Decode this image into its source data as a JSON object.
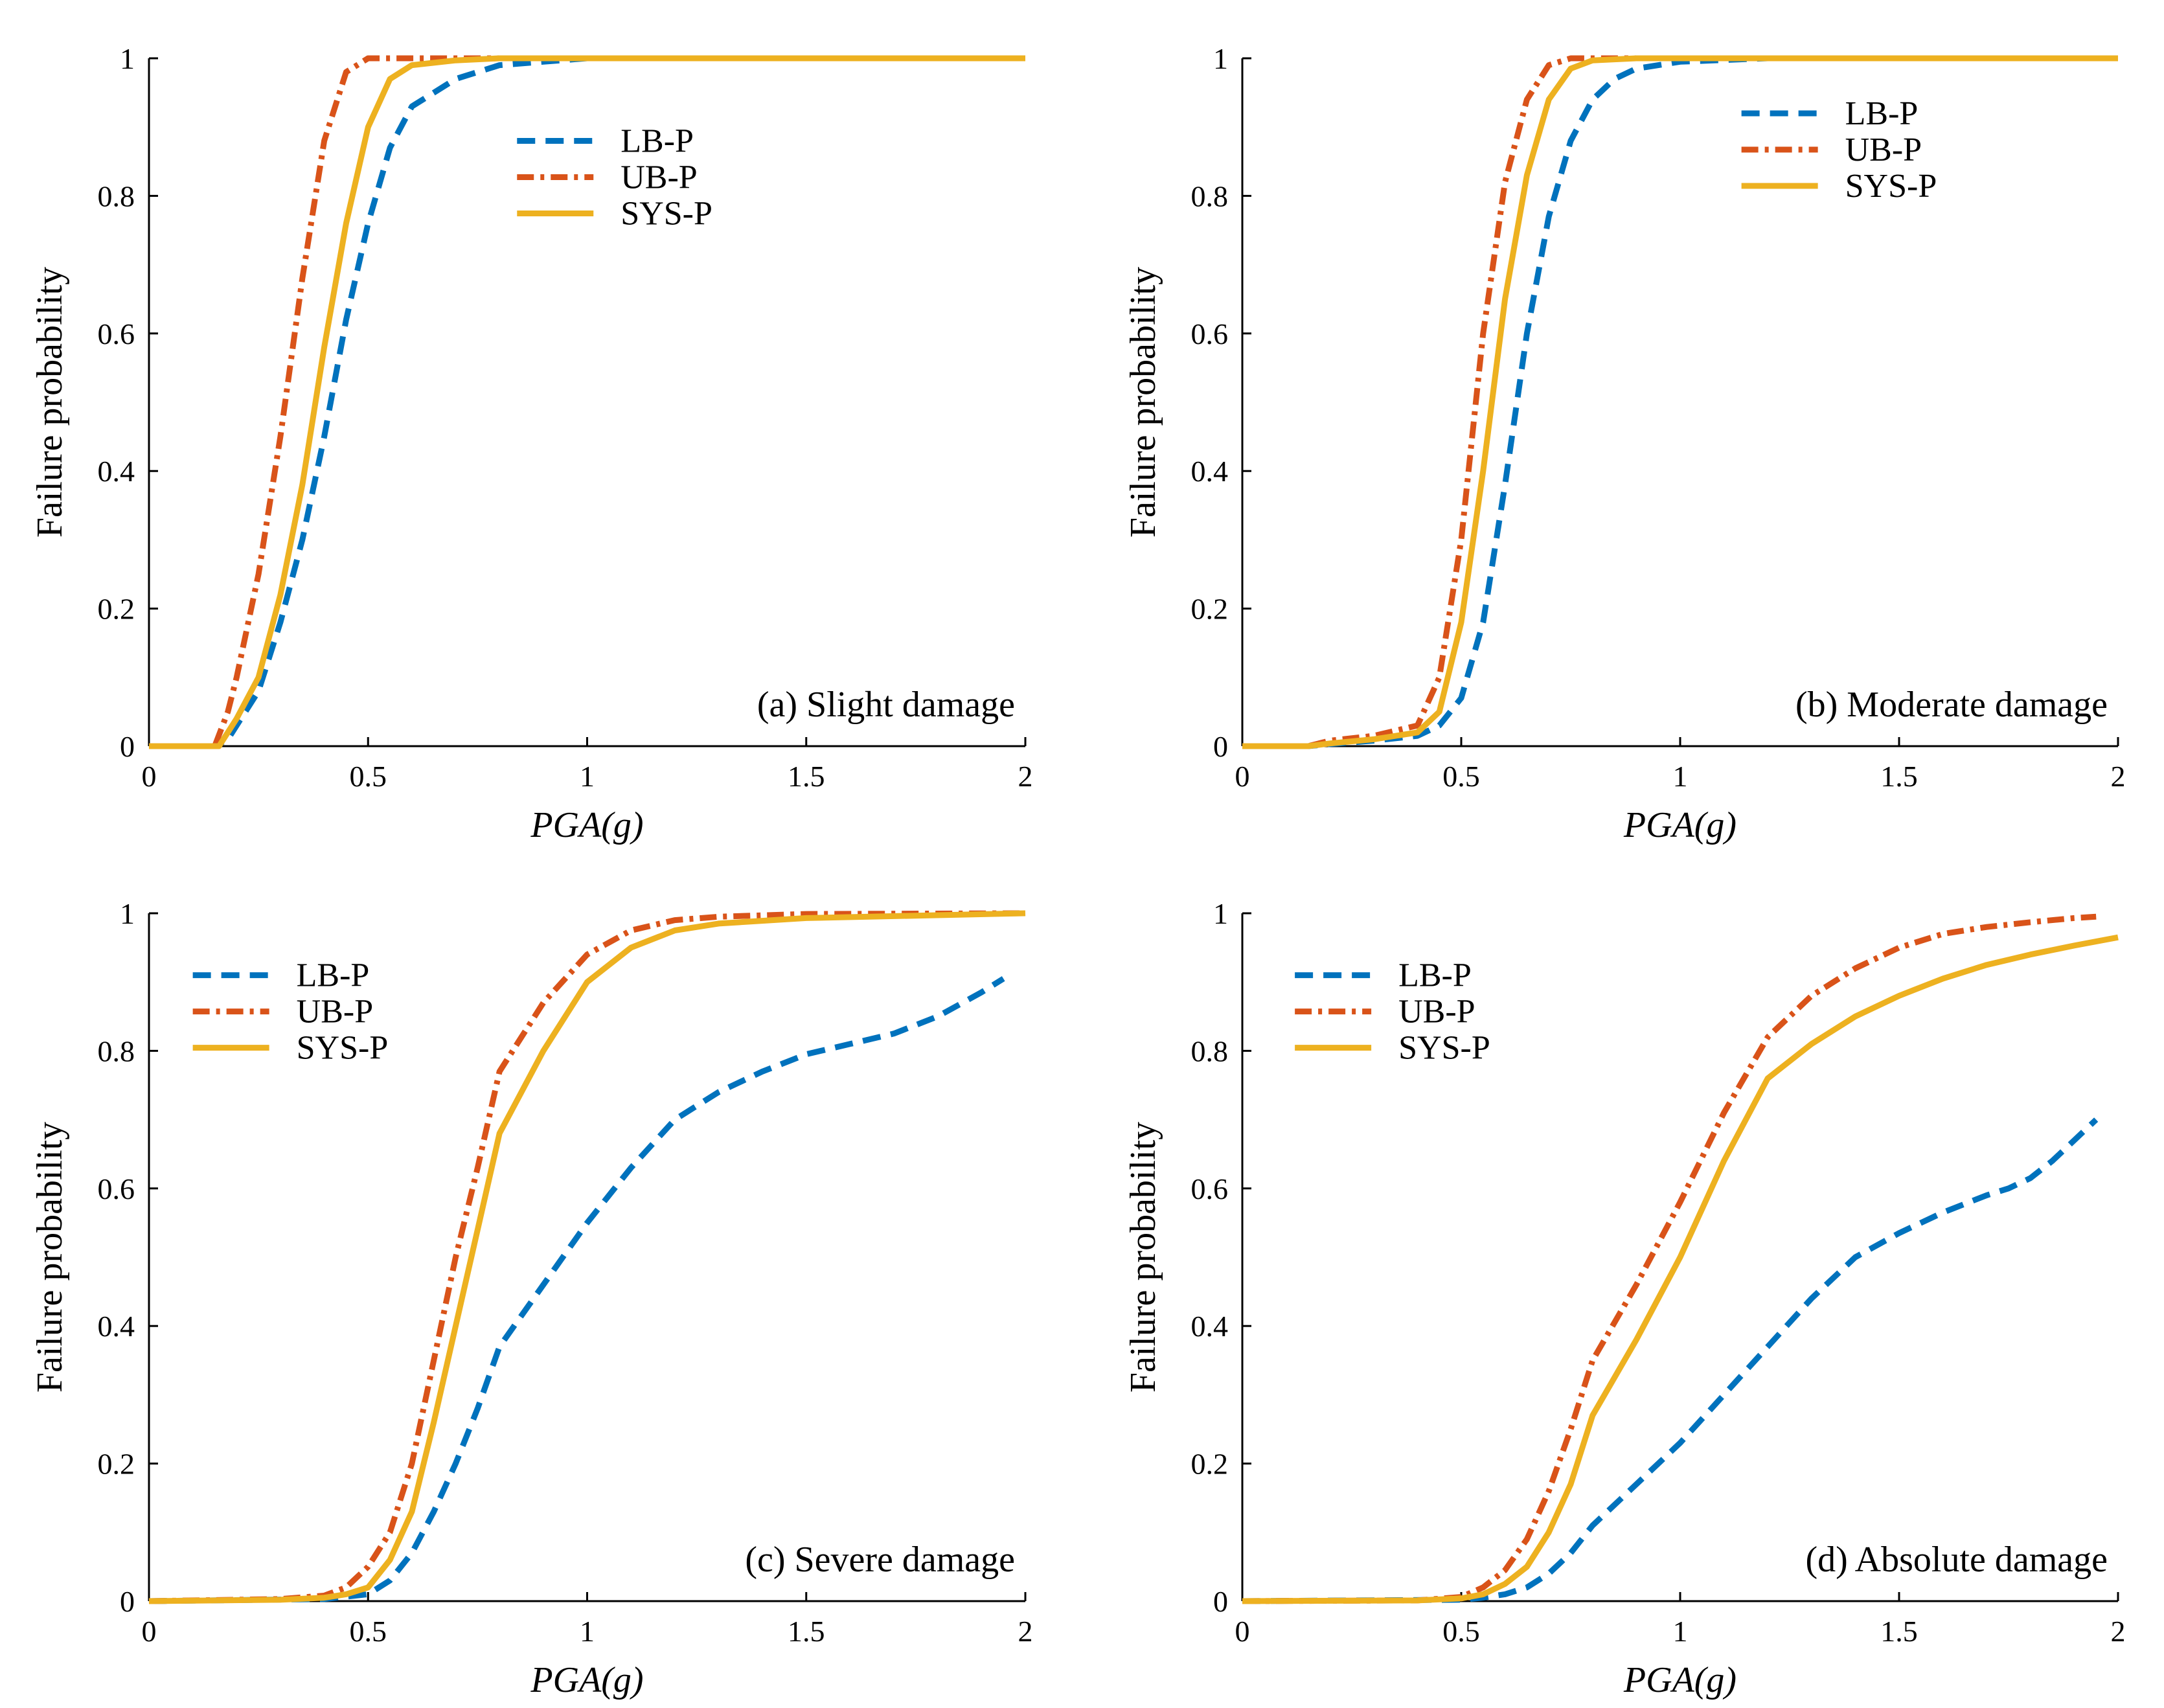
{
  "chart_data": [
    {
      "type": "line",
      "title": "(a) Slight damage",
      "xlabel": "PGA(g)",
      "ylabel": "Failure probability",
      "xlim": [
        0,
        2
      ],
      "ylim": [
        0,
        1
      ],
      "xticks": [
        "0",
        "0.5",
        "1",
        "1.5",
        "2"
      ],
      "yticks": [
        "0",
        "0.2",
        "0.4",
        "0.6",
        "0.8",
        "1"
      ],
      "legend_position": "top-center",
      "series": [
        {
          "name": "LB-P",
          "style": "dashed",
          "color": "#0072BD",
          "x": [
            0,
            0.15,
            0.18,
            0.2,
            0.25,
            0.3,
            0.35,
            0.4,
            0.45,
            0.5,
            0.55,
            0.6,
            0.7,
            0.8,
            0.9,
            1.0,
            1.2,
            2.0
          ],
          "y": [
            0,
            0,
            0.01,
            0.03,
            0.08,
            0.18,
            0.3,
            0.45,
            0.62,
            0.76,
            0.87,
            0.93,
            0.97,
            0.99,
            0.995,
            1.0,
            1.0,
            1.0
          ]
        },
        {
          "name": "UB-P",
          "style": "dashdot",
          "color": "#D95319",
          "x": [
            0,
            0.15,
            0.18,
            0.2,
            0.25,
            0.3,
            0.35,
            0.4,
            0.45,
            0.5,
            0.55,
            0.6,
            1.0,
            2.0
          ],
          "y": [
            0,
            0,
            0.05,
            0.1,
            0.25,
            0.45,
            0.68,
            0.88,
            0.98,
            1.0,
            1.0,
            1.0,
            1.0,
            1.0
          ]
        },
        {
          "name": "SYS-P",
          "style": "solid",
          "color": "#EDB120",
          "x": [
            0,
            0.16,
            0.2,
            0.25,
            0.3,
            0.35,
            0.4,
            0.45,
            0.5,
            0.55,
            0.6,
            0.7,
            0.8,
            1.0,
            2.0
          ],
          "y": [
            0,
            0,
            0.04,
            0.1,
            0.22,
            0.38,
            0.58,
            0.76,
            0.9,
            0.97,
            0.99,
            0.997,
            1.0,
            1.0,
            1.0
          ]
        }
      ]
    },
    {
      "type": "line",
      "title": "(b) Moderate damage",
      "xlabel": "PGA(g)",
      "ylabel": "Failure probability",
      "xlim": [
        0,
        2
      ],
      "ylim": [
        0,
        1
      ],
      "xticks": [
        "0",
        "0.5",
        "1",
        "1.5",
        "2"
      ],
      "yticks": [
        "0",
        "0.2",
        "0.4",
        "0.6",
        "0.8",
        "1"
      ],
      "legend_position": "top-right",
      "series": [
        {
          "name": "LB-P",
          "style": "dashed",
          "color": "#0072BD",
          "x": [
            0,
            0.15,
            0.2,
            0.3,
            0.4,
            0.45,
            0.5,
            0.55,
            0.6,
            0.65,
            0.7,
            0.75,
            0.8,
            0.85,
            0.9,
            1.0,
            1.2,
            1.4,
            2.0
          ],
          "y": [
            0,
            0,
            0.003,
            0.008,
            0.015,
            0.03,
            0.07,
            0.18,
            0.38,
            0.6,
            0.77,
            0.88,
            0.94,
            0.97,
            0.985,
            0.995,
            1.0,
            1.0,
            1.0
          ]
        },
        {
          "name": "UB-P",
          "style": "dashdot",
          "color": "#D95319",
          "x": [
            0,
            0.15,
            0.2,
            0.3,
            0.4,
            0.45,
            0.5,
            0.55,
            0.6,
            0.65,
            0.7,
            0.75,
            0.8,
            2.0
          ],
          "y": [
            0,
            0,
            0.008,
            0.015,
            0.03,
            0.1,
            0.3,
            0.6,
            0.82,
            0.94,
            0.99,
            1.0,
            1.0,
            1.0
          ]
        },
        {
          "name": "SYS-P",
          "style": "solid",
          "color": "#EDB120",
          "x": [
            0,
            0.15,
            0.2,
            0.3,
            0.4,
            0.45,
            0.5,
            0.55,
            0.6,
            0.65,
            0.7,
            0.75,
            0.8,
            0.9,
            2.0
          ],
          "y": [
            0,
            0,
            0.004,
            0.01,
            0.02,
            0.05,
            0.18,
            0.4,
            0.65,
            0.83,
            0.94,
            0.985,
            0.997,
            1.0,
            1.0
          ]
        }
      ]
    },
    {
      "type": "line",
      "title": "(c) Severe damage",
      "xlabel": "PGA(g)",
      "ylabel": "Failure probability",
      "xlim": [
        0,
        2
      ],
      "ylim": [
        0,
        1
      ],
      "xticks": [
        "0",
        "0.5",
        "1",
        "1.5",
        "2"
      ],
      "yticks": [
        "0",
        "0.2",
        "0.4",
        "0.6",
        "0.8",
        "1"
      ],
      "legend_position": "top-left",
      "series": [
        {
          "name": "LB-P",
          "style": "dashed",
          "color": "#0072BD",
          "x": [
            0,
            0.4,
            0.5,
            0.55,
            0.6,
            0.65,
            0.7,
            0.75,
            0.8,
            0.9,
            1.0,
            1.1,
            1.2,
            1.3,
            1.4,
            1.5,
            1.6,
            1.7,
            1.8,
            1.9,
            1.95
          ],
          "y": [
            0,
            0.003,
            0.01,
            0.03,
            0.07,
            0.13,
            0.2,
            0.28,
            0.37,
            0.46,
            0.55,
            0.63,
            0.7,
            0.74,
            0.77,
            0.795,
            0.81,
            0.825,
            0.85,
            0.885,
            0.905
          ]
        },
        {
          "name": "UB-P",
          "style": "dashdot",
          "color": "#D95319",
          "x": [
            0,
            0.3,
            0.4,
            0.45,
            0.5,
            0.55,
            0.6,
            0.65,
            0.7,
            0.75,
            0.8,
            0.9,
            1.0,
            1.1,
            1.2,
            1.3,
            1.5,
            2.0
          ],
          "y": [
            0,
            0.003,
            0.008,
            0.02,
            0.05,
            0.1,
            0.2,
            0.35,
            0.5,
            0.63,
            0.77,
            0.87,
            0.94,
            0.975,
            0.99,
            0.995,
            0.999,
            1.0
          ]
        },
        {
          "name": "SYS-P",
          "style": "solid",
          "color": "#EDB120",
          "x": [
            0,
            0.3,
            0.4,
            0.45,
            0.5,
            0.55,
            0.6,
            0.65,
            0.7,
            0.75,
            0.8,
            0.9,
            1.0,
            1.1,
            1.2,
            1.3,
            1.5,
            2.0
          ],
          "y": [
            0,
            0.002,
            0.005,
            0.01,
            0.02,
            0.06,
            0.13,
            0.26,
            0.4,
            0.54,
            0.68,
            0.8,
            0.9,
            0.95,
            0.975,
            0.985,
            0.993,
            1.0
          ]
        }
      ]
    },
    {
      "type": "line",
      "title": "(d) Absolute damage",
      "xlabel": "PGA(g)",
      "ylabel": "Failure probability",
      "xlim": [
        0,
        2
      ],
      "ylim": [
        0,
        1
      ],
      "xticks": [
        "0",
        "0.5",
        "1",
        "1.5",
        "2"
      ],
      "yticks": [
        "0",
        "0.2",
        "0.4",
        "0.6",
        "0.8",
        "1"
      ],
      "legend_position": "top-left",
      "series": [
        {
          "name": "LB-P",
          "style": "dashed",
          "color": "#0072BD",
          "x": [
            0,
            0.5,
            0.55,
            0.6,
            0.65,
            0.7,
            0.75,
            0.8,
            0.9,
            1.0,
            1.1,
            1.2,
            1.3,
            1.4,
            1.5,
            1.6,
            1.7,
            1.75,
            1.8,
            1.85,
            1.9,
            1.95
          ],
          "y": [
            0,
            0.002,
            0.005,
            0.01,
            0.02,
            0.04,
            0.07,
            0.11,
            0.17,
            0.23,
            0.3,
            0.37,
            0.44,
            0.5,
            0.535,
            0.565,
            0.59,
            0.6,
            0.615,
            0.64,
            0.67,
            0.7
          ]
        },
        {
          "name": "UB-P",
          "style": "dashdot",
          "color": "#D95319",
          "x": [
            0,
            0.4,
            0.5,
            0.55,
            0.6,
            0.65,
            0.7,
            0.75,
            0.8,
            0.9,
            1.0,
            1.1,
            1.2,
            1.3,
            1.4,
            1.5,
            1.6,
            1.7,
            1.8,
            1.9,
            1.95
          ],
          "y": [
            0,
            0.001,
            0.006,
            0.02,
            0.045,
            0.09,
            0.16,
            0.25,
            0.35,
            0.46,
            0.58,
            0.71,
            0.82,
            0.88,
            0.92,
            0.95,
            0.97,
            0.98,
            0.987,
            0.993,
            0.995
          ]
        },
        {
          "name": "SYS-P",
          "style": "solid",
          "color": "#EDB120",
          "x": [
            0,
            0.4,
            0.5,
            0.55,
            0.6,
            0.65,
            0.7,
            0.75,
            0.8,
            0.9,
            1.0,
            1.1,
            1.2,
            1.3,
            1.4,
            1.5,
            1.6,
            1.7,
            1.8,
            1.9,
            2.0
          ],
          "y": [
            0,
            0.001,
            0.004,
            0.01,
            0.025,
            0.05,
            0.1,
            0.17,
            0.27,
            0.38,
            0.5,
            0.64,
            0.76,
            0.81,
            0.85,
            0.88,
            0.905,
            0.925,
            0.94,
            0.953,
            0.965
          ]
        }
      ]
    }
  ]
}
